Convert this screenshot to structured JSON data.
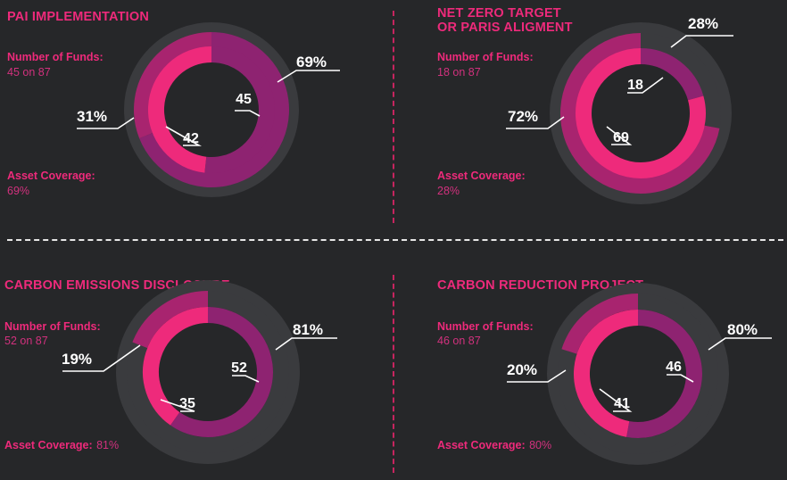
{
  "colors": {
    "background": "#262729",
    "track": "#3a3b3e",
    "outer_accent": "#a8246f",
    "inner_pink": "#ee2a7b",
    "inner_purple": "#8e2371",
    "label_pink": "#ee2a7b",
    "leader": "#ffffff"
  },
  "panels": [
    {
      "title": "PAI IMPLEMENTATION",
      "funds_label": "Number of Funds:",
      "funds_value": "45 on 87",
      "coverage_label": "Asset Coverage:",
      "coverage_value": "69%"
    },
    {
      "title": "NET ZERO TARGET\nOR PARIS ALIGMENT",
      "funds_label": "Number of Funds:",
      "funds_value": "18 on 87",
      "coverage_label": "Asset Coverage:",
      "coverage_value": "28%"
    },
    {
      "title": "CARBON EMISSIONS DISCLOSURE",
      "funds_label": "Number of Funds:",
      "funds_value": "52 on 87",
      "coverage_label": "Asset Coverage:",
      "coverage_value": "81%"
    },
    {
      "title": "CARBON REDUCTION PROJECT",
      "funds_label": "Number of Funds:",
      "funds_value": "46 on 87",
      "coverage_label": "Asset Coverage:",
      "coverage_value": "80%"
    }
  ],
  "chart_data": [
    {
      "type": "pie",
      "title": "PAI IMPLEMENTATION",
      "outer_ring": {
        "labels": [
          "69%",
          "31%"
        ],
        "values": [
          69,
          31
        ]
      },
      "inner_ring": {
        "labels": [
          "45",
          "42"
        ],
        "values": [
          45,
          42
        ]
      }
    },
    {
      "type": "pie",
      "title": "NET ZERO TARGET OR PARIS ALIGMENT",
      "outer_ring": {
        "labels": [
          "28%",
          "72%"
        ],
        "values": [
          28,
          72
        ]
      },
      "inner_ring": {
        "labels": [
          "18",
          "69"
        ],
        "values": [
          18,
          69
        ]
      }
    },
    {
      "type": "pie",
      "title": "CARBON EMISSIONS DISCLOSURE",
      "outer_ring": {
        "labels": [
          "81%",
          "19%"
        ],
        "values": [
          81,
          19
        ]
      },
      "inner_ring": {
        "labels": [
          "52",
          "35"
        ],
        "values": [
          52,
          35
        ]
      }
    },
    {
      "type": "pie",
      "title": "CARBON REDUCTION PROJECT",
      "outer_ring": {
        "labels": [
          "80%",
          "20%"
        ],
        "values": [
          80,
          20
        ]
      },
      "inner_ring": {
        "labels": [
          "46",
          "41"
        ],
        "values": [
          46,
          41
        ]
      }
    }
  ]
}
